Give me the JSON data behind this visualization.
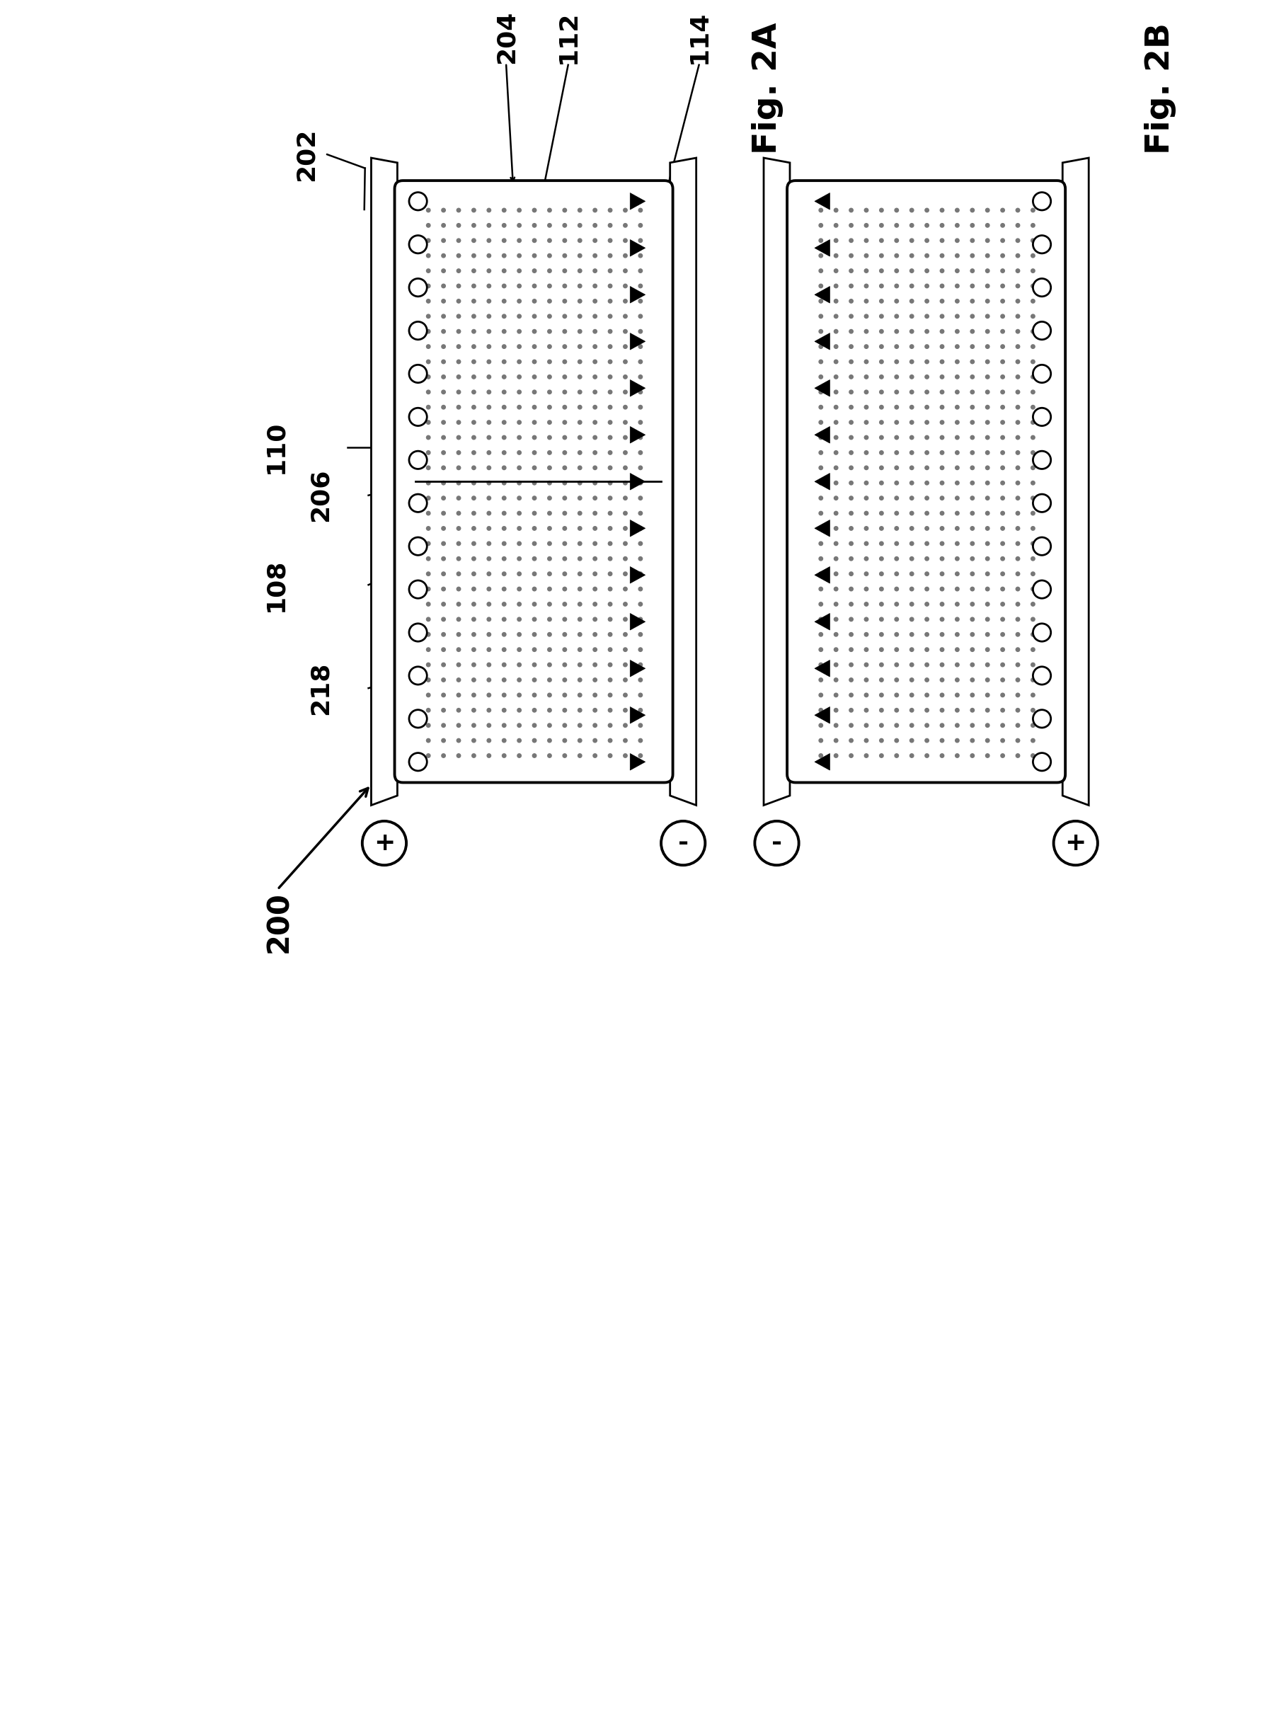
{
  "fig_width": 18.0,
  "fig_height": 24.51,
  "bg_color": "#ffffff",
  "fig2a_label": "Fig. 2A",
  "fig2b_label": "Fig. 2B",
  "label_200": "200",
  "label_202": "202",
  "label_204": "204",
  "label_206": "206",
  "label_108": "108",
  "label_110": "110",
  "label_112": "112",
  "label_114": "114",
  "label_218": "218",
  "font_size_label": 26,
  "font_size_fig": 34,
  "n_circles": 14,
  "n_triangles": 13
}
